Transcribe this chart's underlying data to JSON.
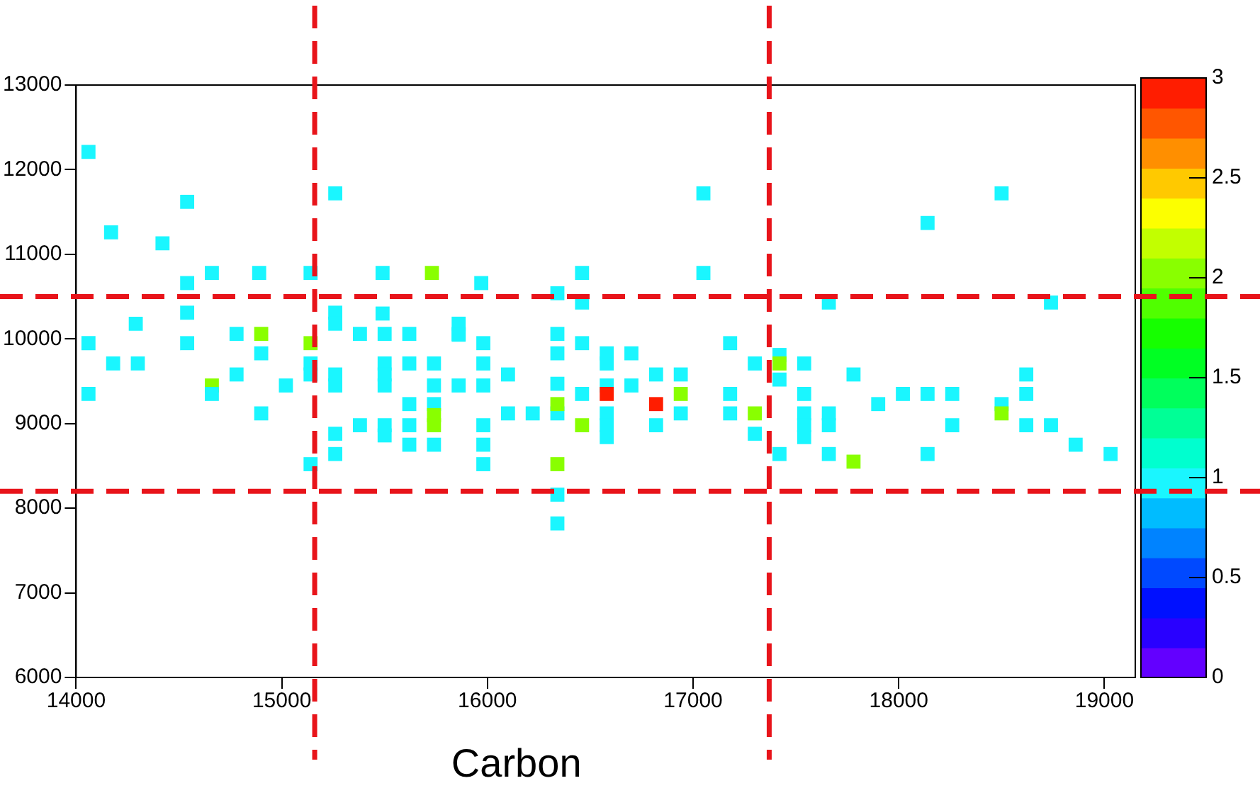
{
  "chart_data": {
    "type": "scatter",
    "xlabel": "Carbon",
    "marker": "square",
    "grid": false,
    "legend": false,
    "xlim": [
      14000,
      19150
    ],
    "xticks": [
      14000,
      15000,
      16000,
      17000,
      18000,
      19000
    ],
    "ylim": [
      6000,
      13000
    ],
    "yticks": [
      6000,
      7000,
      8000,
      9000,
      10000,
      11000,
      12000,
      13000
    ],
    "clim": [
      0,
      3
    ],
    "cticks": [
      0,
      0.5,
      1,
      1.5,
      2,
      2.5,
      3
    ],
    "ref_lines": [
      {
        "axis": "x",
        "value": 15160,
        "color": "#e8141a",
        "line_style": "dashed"
      },
      {
        "axis": "x",
        "value": 17370,
        "color": "#e8141a",
        "line_style": "dashed"
      },
      {
        "axis": "y",
        "value": 10500,
        "color": "#e8141a",
        "line_style": "dashed"
      },
      {
        "axis": "y",
        "value": 8200,
        "color": "#e8141a",
        "line_style": "dashed"
      }
    ],
    "series": [
      {
        "x": [
          14060,
          14540,
          15260,
          14170,
          14420,
          14660,
          14890,
          15140,
          15490,
          15730,
          14540,
          14540,
          14290,
          15260,
          15260,
          15490,
          15380,
          15500,
          15620,
          15860,
          14780,
          14900,
          14060,
          14540,
          15140,
          14900,
          14180,
          14300,
          15140,
          15140,
          15260,
          15260,
          15500,
          15500,
          15500,
          15620,
          15740,
          15740,
          15860,
          14780,
          15020,
          14660,
          14660,
          14060,
          15620,
          15740,
          14900,
          15740,
          15740,
          15380,
          15500,
          15620,
          15500,
          15260,
          15620,
          15740,
          15260,
          15140,
          17050,
          17050,
          16460,
          15970,
          16340,
          16460,
          15860,
          15860,
          15980,
          16340,
          16460,
          16340,
          15980,
          16580,
          16700,
          16580,
          16100,
          15980,
          16580,
          16700,
          16340,
          16820,
          16940,
          16460,
          16580,
          16940,
          17180,
          17180,
          17300,
          17420,
          17420,
          17540,
          16100,
          16220,
          16340,
          15980,
          16340,
          16580,
          16820,
          16940,
          16460,
          16580,
          16580,
          16820,
          17180,
          17300,
          17300,
          15980,
          15980,
          16340,
          16340,
          16340,
          17420,
          17540,
          17540,
          17540,
          17660,
          17660,
          17420,
          18500,
          18140,
          17660,
          18740,
          17780,
          18620,
          17540,
          18020,
          18140,
          18260,
          17900,
          18500,
          18500,
          18620,
          18260,
          18620,
          18740,
          18860,
          17660,
          18140,
          19030,
          17780
        ],
        "values": [
          12210,
          11620,
          11720,
          11260,
          11130,
          10780,
          10780,
          10780,
          10780,
          10780,
          10660,
          10310,
          10180,
          10310,
          10180,
          10300,
          10060,
          10060,
          10060,
          10060,
          10060,
          10060,
          9950,
          9950,
          9950,
          9830,
          9710,
          9710,
          9710,
          9580,
          9580,
          9450,
          9710,
          9580,
          9450,
          9710,
          9710,
          9450,
          9450,
          9580,
          9450,
          9450,
          9350,
          9350,
          9230,
          9230,
          9120,
          9100,
          8980,
          8980,
          8980,
          8980,
          8860,
          8880,
          8750,
          8750,
          8640,
          8520,
          11720,
          10780,
          10780,
          10660,
          10540,
          10430,
          10180,
          10050,
          9950,
          10060,
          9950,
          9830,
          9710,
          9830,
          9830,
          9710,
          9580,
          9450,
          9450,
          9450,
          9470,
          9580,
          9580,
          9350,
          9350,
          9350,
          9350,
          9950,
          9710,
          9810,
          9710,
          9710,
          9120,
          9120,
          9120,
          8980,
          9230,
          9120,
          9230,
          9120,
          8980,
          8980,
          8840,
          8980,
          9120,
          9120,
          8880,
          8750,
          8520,
          8520,
          8160,
          7820,
          9520,
          9120,
          8980,
          8840,
          9120,
          8980,
          8640,
          11720,
          11370,
          10430,
          10430,
          9580,
          9580,
          9350,
          9350,
          9350,
          9350,
          9230,
          9230,
          9120,
          9350,
          8980,
          8980,
          8980,
          8750,
          8640,
          8640,
          8640,
          8550
        ],
        "cvalues": [
          1,
          1,
          1,
          1,
          1,
          1,
          1,
          1,
          1,
          2,
          1,
          1,
          1,
          1,
          1,
          1,
          1,
          1,
          1,
          1,
          1,
          2,
          1,
          1,
          2,
          1,
          1,
          1,
          1,
          1,
          1,
          1,
          1,
          1,
          1,
          1,
          1,
          1,
          1,
          1,
          1,
          2,
          1,
          1,
          1,
          1,
          1,
          2,
          2,
          1,
          1,
          1,
          1,
          1,
          1,
          1,
          1,
          1,
          1,
          1,
          1,
          1,
          1,
          1,
          1,
          1,
          1,
          1,
          1,
          1,
          1,
          1,
          1,
          1,
          1,
          1,
          1,
          1,
          1,
          1,
          1,
          1,
          3,
          2,
          1,
          1,
          1,
          1,
          2,
          1,
          1,
          1,
          1,
          1,
          2,
          1,
          3,
          1,
          2,
          1,
          1,
          1,
          1,
          2,
          1,
          1,
          1,
          2,
          1,
          1,
          1,
          1,
          1,
          1,
          1,
          1,
          1,
          1,
          1,
          1,
          1,
          1,
          1,
          1,
          1,
          1,
          1,
          1,
          1,
          2,
          1,
          1,
          1,
          1,
          1,
          1,
          1,
          1,
          2
        ]
      }
    ]
  }
}
